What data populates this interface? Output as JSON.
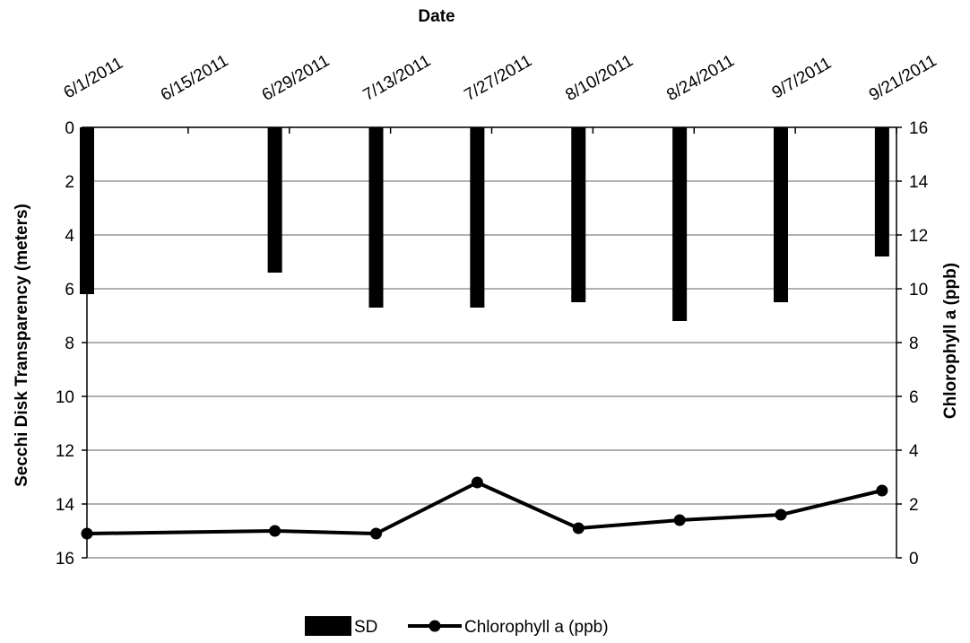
{
  "chart_data": {
    "type": "bar",
    "x_title": "Date",
    "y_left_title": "Secchi Disk Transparency (meters)",
    "y_right_title": "Chlorophyll a (ppb)",
    "y_left_range": [
      0,
      16
    ],
    "y_left_ticks": [
      "0",
      "2",
      "4",
      "6",
      "8",
      "10",
      "12",
      "14",
      "16"
    ],
    "y_left_inverted": true,
    "y_right_range": [
      0,
      16
    ],
    "y_right_ticks": [
      "0",
      "2",
      "4",
      "6",
      "8",
      "10",
      "12",
      "14",
      "16"
    ],
    "x_ticks": [
      "6/1/2011",
      "6/15/2011",
      "6/29/2011",
      "7/13/2011",
      "7/27/2011",
      "8/10/2011",
      "8/24/2011",
      "9/7/2011",
      "9/21/2011"
    ],
    "grid": true,
    "legend_position": "bottom",
    "series": [
      {
        "name": "SD",
        "kind": "bar",
        "axis": "left",
        "color": "#000000",
        "points": [
          {
            "date": "6/1/2011",
            "value": 6.2
          },
          {
            "date": "6/27/2011",
            "value": 5.4
          },
          {
            "date": "7/11/2011",
            "value": 6.7
          },
          {
            "date": "7/25/2011",
            "value": 6.7
          },
          {
            "date": "8/8/2011",
            "value": 6.5
          },
          {
            "date": "8/22/2011",
            "value": 7.2
          },
          {
            "date": "9/5/2011",
            "value": 6.5
          },
          {
            "date": "9/19/2011",
            "value": 4.8
          }
        ]
      },
      {
        "name": "Chlorophyll a (ppb)",
        "kind": "line",
        "axis": "right",
        "color": "#000000",
        "points": [
          {
            "date": "6/1/2011",
            "value": 0.9
          },
          {
            "date": "6/27/2011",
            "value": 1.0
          },
          {
            "date": "7/11/2011",
            "value": 0.9
          },
          {
            "date": "7/25/2011",
            "value": 2.8
          },
          {
            "date": "8/8/2011",
            "value": 1.1
          },
          {
            "date": "8/22/2011",
            "value": 1.4
          },
          {
            "date": "9/5/2011",
            "value": 1.6
          },
          {
            "date": "9/19/2011",
            "value": 2.5
          }
        ]
      }
    ]
  }
}
